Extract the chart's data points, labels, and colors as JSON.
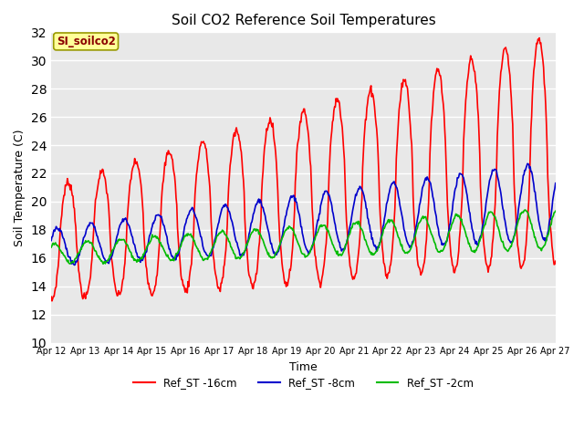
{
  "title": "Soil CO2 Reference Soil Temperatures",
  "xlabel": "Time",
  "ylabel": "Soil Temperature (C)",
  "ylim": [
    10,
    32
  ],
  "yticks": [
    10,
    12,
    14,
    16,
    18,
    20,
    22,
    24,
    26,
    28,
    30,
    32
  ],
  "background_color": "#ffffff",
  "plot_bg_color": "#e8e8e8",
  "grid_color": "#ffffff",
  "series": [
    {
      "label": "Ref_ST -16cm",
      "color": "#ff0000",
      "linewidth": 1.2
    },
    {
      "label": "Ref_ST -8cm",
      "color": "#0000cc",
      "linewidth": 1.2
    },
    {
      "label": "Ref_ST -2cm",
      "color": "#00bb00",
      "linewidth": 1.2
    }
  ],
  "annotation_text": "SI_soilco2",
  "annotation_color": "#8b0000",
  "annotation_bg": "#ffff99",
  "annotation_border": "#999900",
  "x_tick_labels": [
    "Apr 12",
    "Apr 13",
    "Apr 14",
    "Apr 15",
    "Apr 16",
    "Apr 17",
    "Apr 18",
    "Apr 19",
    "Apr 20",
    "Apr 21",
    "Apr 22",
    "Apr 23",
    "Apr 24",
    "Apr 25",
    "Apr 26",
    "Apr 27"
  ],
  "n_points": 720,
  "duration_days": 15
}
